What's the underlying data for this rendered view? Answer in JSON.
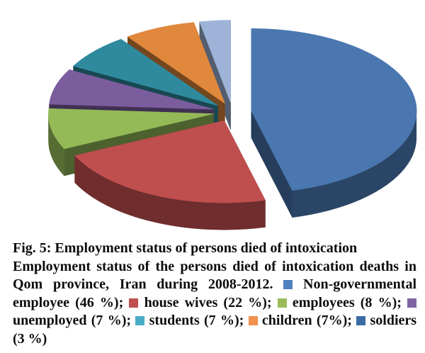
{
  "figure_caption": {
    "title": "Fig. 5: Employment status of persons died of intoxication",
    "description": "Employment status of the persons died of intoxication deaths in Qom province, Iran during 2008-2012.",
    "legend_items": [
      {
        "label": "Non-governmental employee (46 %);",
        "color": "#4f81bd"
      },
      {
        "label": "house wives (22 %);",
        "color": "#c0504d"
      },
      {
        "label": "employees (8 %);",
        "color": "#9bbb59"
      },
      {
        "label": "unemployed (7 %);",
        "color": "#8064a2"
      },
      {
        "label": "students (7 %);",
        "color": "#4bacc6"
      },
      {
        "label": "children (7%);",
        "color": "#f0924d"
      },
      {
        "label": "soldiers (3 %)",
        "color": "#3a6ba5"
      }
    ]
  },
  "chart_data": {
    "type": "pie",
    "style": "3d-exploded",
    "title": "Employment status of persons died of intoxication deaths in Qom province, Iran during 2008-2012",
    "categories": [
      "Non-governmental employee",
      "house wives",
      "employees",
      "unemployed",
      "students",
      "children",
      "soldiers"
    ],
    "values": [
      46,
      22,
      8,
      7,
      7,
      7,
      3
    ],
    "unit": "%",
    "colors": [
      "#4a77b0",
      "#bf4e4e",
      "#94ba58",
      "#7b5d9e",
      "#2f8a9e",
      "#e0883c",
      "#9db4d8"
    ],
    "start_angle": "12 o'clock",
    "direction": "clockwise",
    "legend_position": "in-caption",
    "grid": false
  }
}
